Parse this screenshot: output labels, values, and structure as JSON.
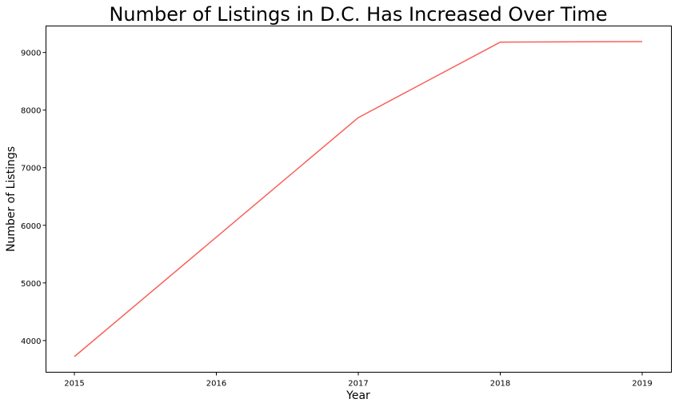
{
  "chart_data": {
    "type": "line",
    "title": "Number of Listings in D.C. Has Increased Over Time",
    "xlabel": "Year",
    "ylabel": "Number of Listings",
    "x": [
      "2015",
      "2016",
      "2017",
      "2018",
      "2019"
    ],
    "series": [
      {
        "values": [
          3720,
          null,
          7870,
          9180,
          9190
        ],
        "color": "#f8605a"
      }
    ],
    "plot_points": [
      {
        "x": "2015",
        "y": 3720
      },
      {
        "x": "2017",
        "y": 7870
      },
      {
        "x": "2018",
        "y": 9180
      },
      {
        "x": "2019",
        "y": 9190
      }
    ],
    "xticks": [
      "2015",
      "2016",
      "2017",
      "2018",
      "2019"
    ],
    "yticks": [
      4000,
      5000,
      6000,
      7000,
      8000,
      9000
    ],
    "ylim": [
      3450,
      9460
    ],
    "grid": false,
    "legend": "none"
  }
}
